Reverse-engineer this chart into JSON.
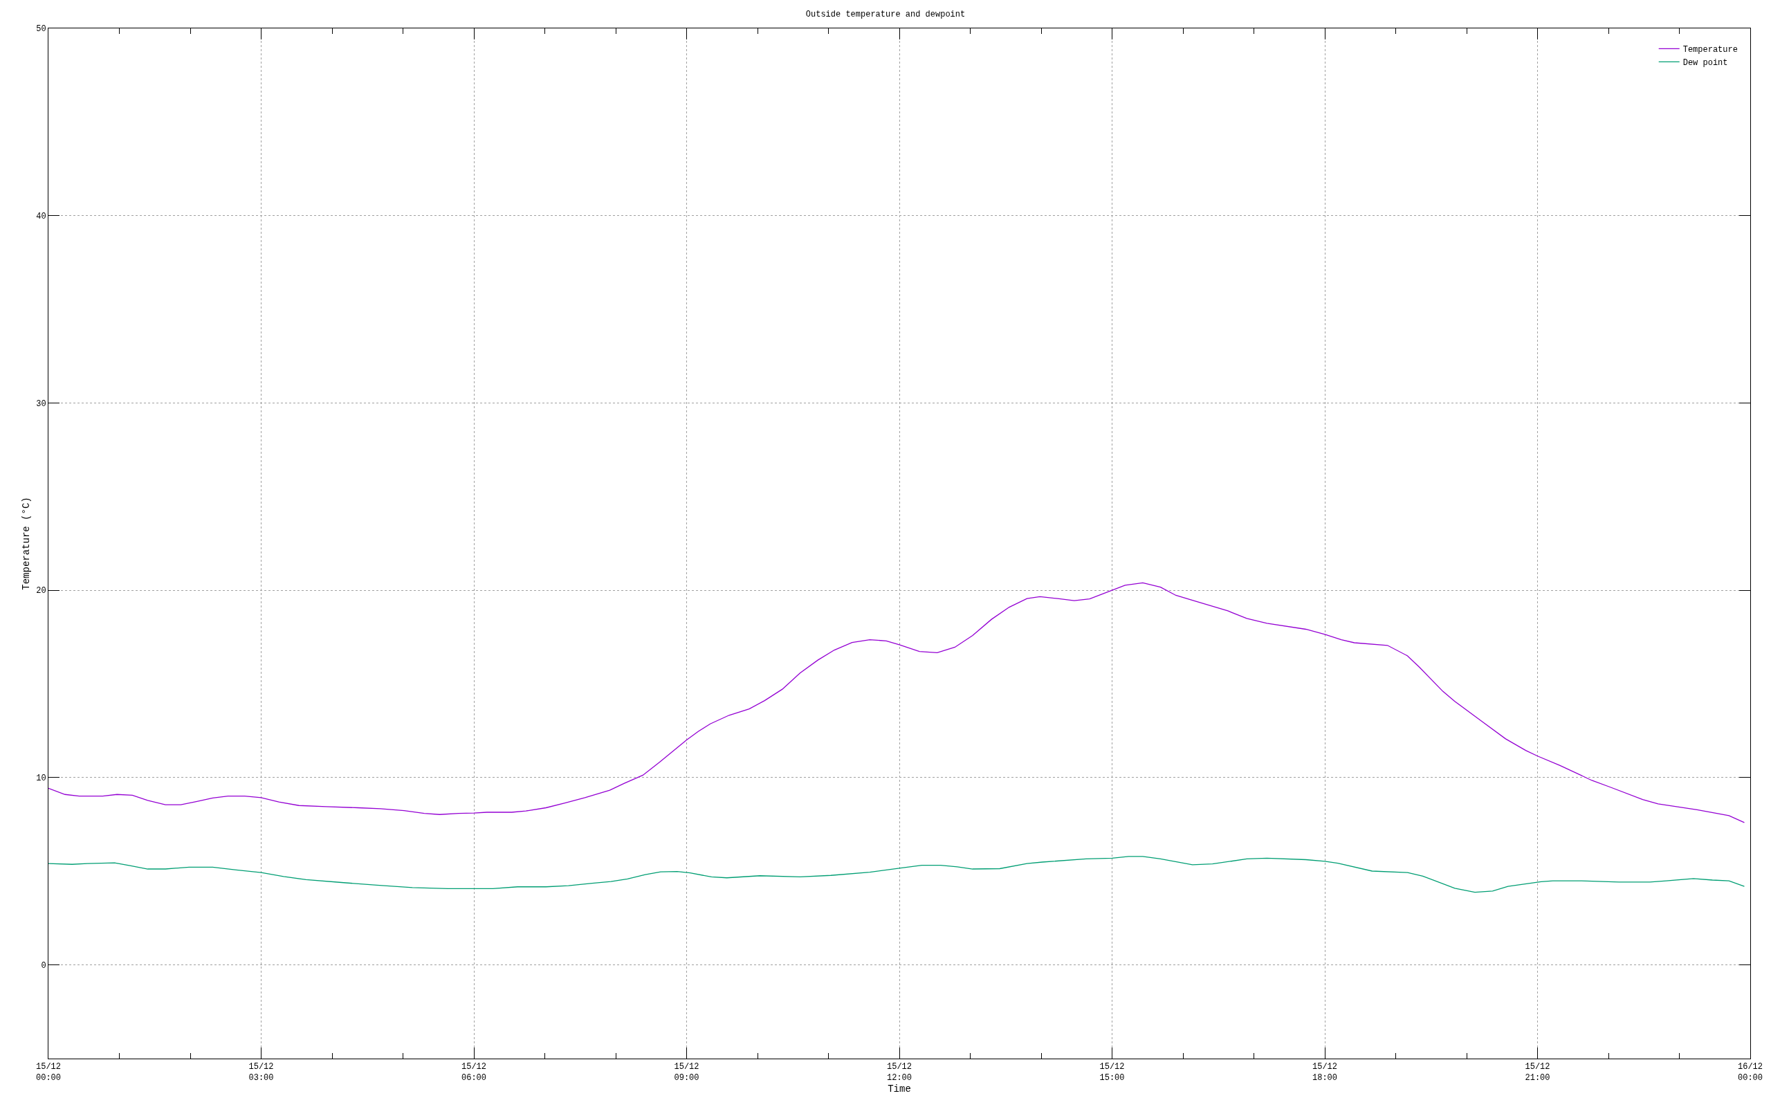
{
  "chart_data": {
    "type": "line",
    "title": "Outside temperature and dewpoint",
    "xlabel": "Time",
    "ylabel": "Temperature (°C)",
    "xlim": [
      "--12-15T00:00",
      "--12-16T00:00"
    ],
    "ylim": [
      -5,
      50
    ],
    "xticks": [
      {
        "value": "--12-15T00:00",
        "label": "15/12\n00:00"
      },
      {
        "value": "--12-15T01:00",
        "label": null
      },
      {
        "value": "--12-15T02:00",
        "label": null
      },
      {
        "value": "--12-15T03:00",
        "label": "15/12\n03:00"
      },
      {
        "value": "--12-15T04:00",
        "label": null
      },
      {
        "value": "--12-15T05:00",
        "label": null
      },
      {
        "value": "--12-15T06:00",
        "label": "15/12\n06:00"
      },
      {
        "value": "--12-15T07:00",
        "label": null
      },
      {
        "value": "--12-15T08:00",
        "label": null
      },
      {
        "value": "--12-15T09:00",
        "label": "15/12\n09:00"
      },
      {
        "value": "--12-15T10:00",
        "label": null
      },
      {
        "value": "--12-15T11:00",
        "label": null
      },
      {
        "value": "--12-15T12:00",
        "label": "15/12\n12:00"
      },
      {
        "value": "--12-15T13:00",
        "label": null
      },
      {
        "value": "--12-15T14:00",
        "label": null
      },
      {
        "value": "--12-15T15:00",
        "label": "15/12\n15:00"
      },
      {
        "value": "--12-15T16:00",
        "label": null
      },
      {
        "value": "--12-15T17:00",
        "label": null
      },
      {
        "value": "--12-15T18:00",
        "label": "15/12\n18:00"
      },
      {
        "value": "--12-15T19:00",
        "label": null
      },
      {
        "value": "--12-15T20:00",
        "label": null
      },
      {
        "value": "--12-15T21:00",
        "label": "15/12\n21:00"
      },
      {
        "value": "--12-15T22:00",
        "label": null
      },
      {
        "value": "--12-15T23:00",
        "label": null
      },
      {
        "value": "--12-16T00:00",
        "label": "16/12\n00:00"
      }
    ],
    "yticks": [
      0,
      10,
      20,
      30,
      40,
      50
    ],
    "grid": true,
    "legend": "top right",
    "marker": "none",
    "line_style": "solid",
    "series": [
      {
        "name": "Temperature",
        "color": "#9400d3",
        "x": [
          "--12-15T00:00",
          "--12-15T00:14",
          "--12-15T00:26",
          "--12-15T00:46",
          "--12-15T00:58",
          "--12-15T01:11",
          "--12-15T01:24",
          "--12-15T01:39",
          "--12-15T01:52",
          "--12-15T02:05",
          "--12-15T02:19",
          "--12-15T02:32",
          "--12-15T02:46",
          "--12-15T03:00",
          "--12-15T03:15",
          "--12-15T03:32",
          "--12-15T03:55",
          "--12-15T04:22",
          "--12-15T04:41",
          "--12-15T05:01",
          "--12-15T05:18",
          "--12-15T05:31",
          "--12-15T05:47",
          "--12-15T06:00",
          "--12-15T06:11",
          "--12-15T06:32",
          "--12-15T06:44",
          "--12-15T07:01",
          "--12-15T07:17",
          "--12-15T07:34",
          "--12-15T07:55",
          "--12-15T08:07",
          "--12-15T08:23",
          "--12-15T08:37",
          "--12-15T09:00",
          "--12-15T09:10",
          "--12-15T09:20",
          "--12-15T09:36",
          "--12-15T09:53",
          "--12-15T10:06",
          "--12-15T10:21",
          "--12-15T10:36",
          "--12-15T10:51",
          "--12-15T11:05",
          "--12-15T11:20",
          "--12-15T11:35",
          "--12-15T11:49",
          "--12-15T12:00",
          "--12-15T12:17",
          "--12-15T12:32",
          "--12-15T12:47",
          "--12-15T13:02",
          "--12-15T13:18",
          "--12-15T13:33",
          "--12-15T13:48",
          "--12-15T13:59",
          "--12-15T14:14",
          "--12-15T14:28",
          "--12-15T14:41",
          "--12-15T15:00",
          "--12-15T15:11",
          "--12-15T15:26",
          "--12-15T15:41",
          "--12-15T15:54",
          "--12-15T16:10",
          "--12-15T16:38",
          "--12-15T16:54",
          "--12-15T17:11",
          "--12-15T17:44",
          "--12-15T18:00",
          "--12-15T18:14",
          "--12-15T18:25",
          "--12-15T18:53",
          "--12-15T19:10",
          "--12-15T19:20",
          "--12-15T19:40",
          "--12-15T19:50",
          "--12-15T20:13",
          "--12-15T20:33",
          "--12-15T20:50",
          "--12-15T21:00",
          "--12-15T21:19",
          "--12-15T21:46",
          "--12-15T22:02",
          "--12-15T22:29",
          "--12-15T22:42",
          "--12-15T23:15",
          "--12-15T23:42",
          "--12-15T23:55"
        ],
        "values": [
          9.43,
          9.1,
          9.01,
          9.01,
          9.1,
          9.06,
          8.78,
          8.55,
          8.55,
          8.72,
          8.91,
          9.01,
          9.01,
          8.93,
          8.7,
          8.51,
          8.45,
          8.39,
          8.34,
          8.24,
          8.09,
          8.03,
          8.09,
          8.11,
          8.15,
          8.15,
          8.22,
          8.39,
          8.64,
          8.93,
          9.33,
          9.69,
          10.13,
          10.82,
          12.01,
          12.47,
          12.87,
          13.33,
          13.67,
          14.11,
          14.72,
          15.58,
          16.27,
          16.81,
          17.21,
          17.36,
          17.3,
          17.09,
          16.73,
          16.67,
          16.96,
          17.59,
          18.45,
          19.1,
          19.56,
          19.66,
          19.56,
          19.45,
          19.54,
          20.0,
          20.27,
          20.4,
          20.17,
          19.73,
          19.43,
          18.9,
          18.5,
          18.24,
          17.92,
          17.65,
          17.36,
          17.2,
          17.06,
          16.5,
          15.9,
          14.6,
          14.07,
          13.0,
          12.07,
          11.45,
          11.15,
          10.65,
          9.85,
          9.48,
          8.83,
          8.6,
          8.28,
          7.97,
          7.6
        ]
      },
      {
        "name": "Dew point",
        "color": "#009e73",
        "x": [
          "--12-15T00:00",
          "--12-15T00:20",
          "--12-15T00:33",
          "--12-15T00:56",
          "--12-15T01:09",
          "--12-15T01:24",
          "--12-15T01:39",
          "--12-15T01:59",
          "--12-15T02:19",
          "--12-15T02:39",
          "--12-15T03:00",
          "--12-15T03:19",
          "--12-15T03:38",
          "--12-15T04:08",
          "--12-15T04:38",
          "--12-15T05:08",
          "--12-15T05:38",
          "--12-15T06:00",
          "--12-15T06:16",
          "--12-15T06:37",
          "--12-15T07:01",
          "--12-15T07:20",
          "--12-15T07:40",
          "--12-15T07:56",
          "--12-15T08:10",
          "--12-15T08:25",
          "--12-15T08:38",
          "--12-15T08:52",
          "--12-15T09:03",
          "--12-15T09:21",
          "--12-15T09:34",
          "--12-15T10:02",
          "--12-15T10:36",
          "--12-15T11:02",
          "--12-15T11:35",
          "--12-15T12:00",
          "--12-15T12:19",
          "--12-15T12:35",
          "--12-15T12:49",
          "--12-15T13:02",
          "--12-15T13:25",
          "--12-15T13:48",
          "--12-15T14:01",
          "--12-15T14:38",
          "--12-15T15:00",
          "--12-15T15:14",
          "--12-15T15:26",
          "--12-15T15:41",
          "--12-15T16:08",
          "--12-15T16:25",
          "--12-15T16:54",
          "--12-15T17:11",
          "--12-15T17:44",
          "--12-15T18:00",
          "--12-15T18:11",
          "--12-15T18:40",
          "--12-15T19:10",
          "--12-15T19:23",
          "--12-15T19:50",
          "--12-15T20:07",
          "--12-15T20:22",
          "--12-15T20:35",
          "--12-15T21:03",
          "--12-15T21:13",
          "--12-15T21:36",
          "--12-15T22:09",
          "--12-15T22:35",
          "--12-15T22:49",
          "--12-15T23:12",
          "--12-15T23:28",
          "--12-15T23:42",
          "--12-15T23:55"
        ],
        "values": [
          5.41,
          5.37,
          5.41,
          5.45,
          5.3,
          5.12,
          5.12,
          5.22,
          5.22,
          5.07,
          4.93,
          4.72,
          4.55,
          4.4,
          4.26,
          4.13,
          4.07,
          4.07,
          4.07,
          4.17,
          4.17,
          4.23,
          4.36,
          4.45,
          4.59,
          4.82,
          4.97,
          4.99,
          4.91,
          4.7,
          4.65,
          4.76,
          4.7,
          4.78,
          4.95,
          5.16,
          5.32,
          5.32,
          5.24,
          5.12,
          5.14,
          5.41,
          5.49,
          5.66,
          5.7,
          5.79,
          5.79,
          5.66,
          5.35,
          5.39,
          5.66,
          5.7,
          5.62,
          5.53,
          5.43,
          5.01,
          4.93,
          4.74,
          4.09,
          3.88,
          3.94,
          4.19,
          4.44,
          4.49,
          4.49,
          4.42,
          4.42,
          4.49,
          4.61,
          4.53,
          4.49,
          4.19
        ]
      }
    ]
  }
}
